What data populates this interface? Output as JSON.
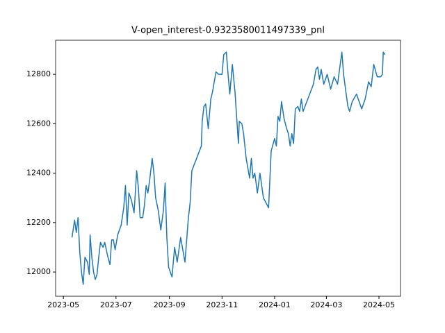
{
  "chart_data": {
    "type": "line",
    "title": "V-open_interest-0.9323580011497339_pnl",
    "x": [
      "2023-05-11",
      "2023-05-14",
      "2023-05-16",
      "2023-05-18",
      "2023-05-20",
      "2023-05-22",
      "2023-05-24",
      "2023-05-26",
      "2023-05-29",
      "2023-05-31",
      "2023-06-01",
      "2023-06-03",
      "2023-06-05",
      "2023-06-07",
      "2023-06-09",
      "2023-06-11",
      "2023-06-13",
      "2023-06-16",
      "2023-06-18",
      "2023-06-21",
      "2023-06-24",
      "2023-06-26",
      "2023-06-28",
      "2023-06-30",
      "2023-07-03",
      "2023-07-07",
      "2023-07-10",
      "2023-07-12",
      "2023-07-14",
      "2023-07-16",
      "2023-07-19",
      "2023-07-22",
      "2023-07-25",
      "2023-07-27",
      "2023-07-29",
      "2023-08-01",
      "2023-08-03",
      "2023-08-05",
      "2023-08-07",
      "2023-08-09",
      "2023-08-12",
      "2023-08-14",
      "2023-08-16",
      "2023-08-19",
      "2023-08-22",
      "2023-08-25",
      "2023-08-27",
      "2023-08-29",
      "2023-08-31",
      "2023-09-04",
      "2023-09-07",
      "2023-09-10",
      "2023-09-14",
      "2023-09-19",
      "2023-09-23",
      "2023-09-25",
      "2023-09-27",
      "2023-10-08",
      "2023-10-09",
      "2023-10-11",
      "2023-10-13",
      "2023-10-16",
      "2023-10-19",
      "2023-10-21",
      "2023-10-25",
      "2023-10-28",
      "2023-11-01",
      "2023-11-03",
      "2023-11-06",
      "2023-11-08",
      "2023-11-10",
      "2023-11-13",
      "2023-11-16",
      "2023-11-20",
      "2023-11-21",
      "2023-11-24",
      "2023-11-26",
      "2023-11-29",
      "2023-12-03",
      "2023-12-05",
      "2023-12-07",
      "2023-12-09",
      "2023-12-12",
      "2023-12-15",
      "2023-12-19",
      "2023-12-25",
      "2023-12-28",
      "2024-01-01",
      "2024-01-03",
      "2024-01-05",
      "2024-01-07",
      "2024-01-09",
      "2024-01-12",
      "2024-01-15",
      "2024-01-17",
      "2024-01-19",
      "2024-01-21",
      "2024-01-23",
      "2024-01-25",
      "2024-01-28",
      "2024-01-30",
      "2024-02-01",
      "2024-02-03",
      "2024-02-15",
      "2024-02-18",
      "2024-02-20",
      "2024-02-22",
      "2024-02-24",
      "2024-02-27",
      "2024-03-02",
      "2024-03-06",
      "2024-03-10",
      "2024-03-14",
      "2024-03-19",
      "2024-03-21",
      "2024-03-24",
      "2024-03-26",
      "2024-03-28",
      "2024-03-31",
      "2024-04-05",
      "2024-04-08",
      "2024-04-11",
      "2024-04-15",
      "2024-04-19",
      "2024-04-22",
      "2024-04-25",
      "2024-04-29",
      "2024-05-03",
      "2024-05-05",
      "2024-05-06",
      "2024-05-08"
    ],
    "series": [
      {
        "color": "#1f77b4",
        "values": [
          12140,
          12210,
          12160,
          12220,
          12080,
          12000,
          11950,
          12060,
          12040,
          11990,
          12150,
          12060,
          12000,
          11970,
          11990,
          12060,
          12120,
          12100,
          12120,
          12070,
          12030,
          12130,
          12130,
          12090,
          12150,
          12190,
          12260,
          12350,
          12190,
          12320,
          12290,
          12240,
          12410,
          12340,
          12220,
          12220,
          12270,
          12350,
          12320,
          12370,
          12460,
          12400,
          12300,
          12250,
          12170,
          12250,
          12360,
          12140,
          12020,
          11980,
          12100,
          12040,
          12140,
          12040,
          12220,
          12280,
          12410,
          12510,
          12610,
          12670,
          12680,
          12580,
          12700,
          12730,
          12810,
          12800,
          12800,
          12880,
          12890,
          12800,
          12720,
          12840,
          12730,
          12520,
          12610,
          12600,
          12560,
          12460,
          12380,
          12460,
          12380,
          12400,
          12320,
          12400,
          12300,
          12260,
          12490,
          12540,
          12510,
          12630,
          12610,
          12690,
          12620,
          12580,
          12560,
          12510,
          12560,
          12520,
          12660,
          12670,
          12650,
          12700,
          12650,
          12760,
          12820,
          12830,
          12780,
          12820,
          12760,
          12800,
          12740,
          12790,
          12760,
          12890,
          12800,
          12720,
          12670,
          12650,
          12690,
          12720,
          12690,
          12660,
          12700,
          12770,
          12750,
          12840,
          12790,
          12790,
          12800,
          12890,
          12880
        ]
      }
    ],
    "xlim": [
      "2023-04-22",
      "2024-05-26"
    ],
    "xticks": [
      "2023-05",
      "2023-07",
      "2023-09",
      "2023-11",
      "2024-01",
      "2024-03",
      "2024-05"
    ],
    "ylim": [
      11902,
      12938
    ],
    "yticks": [
      12000,
      12200,
      12400,
      12600,
      12800
    ],
    "grid": false
  }
}
